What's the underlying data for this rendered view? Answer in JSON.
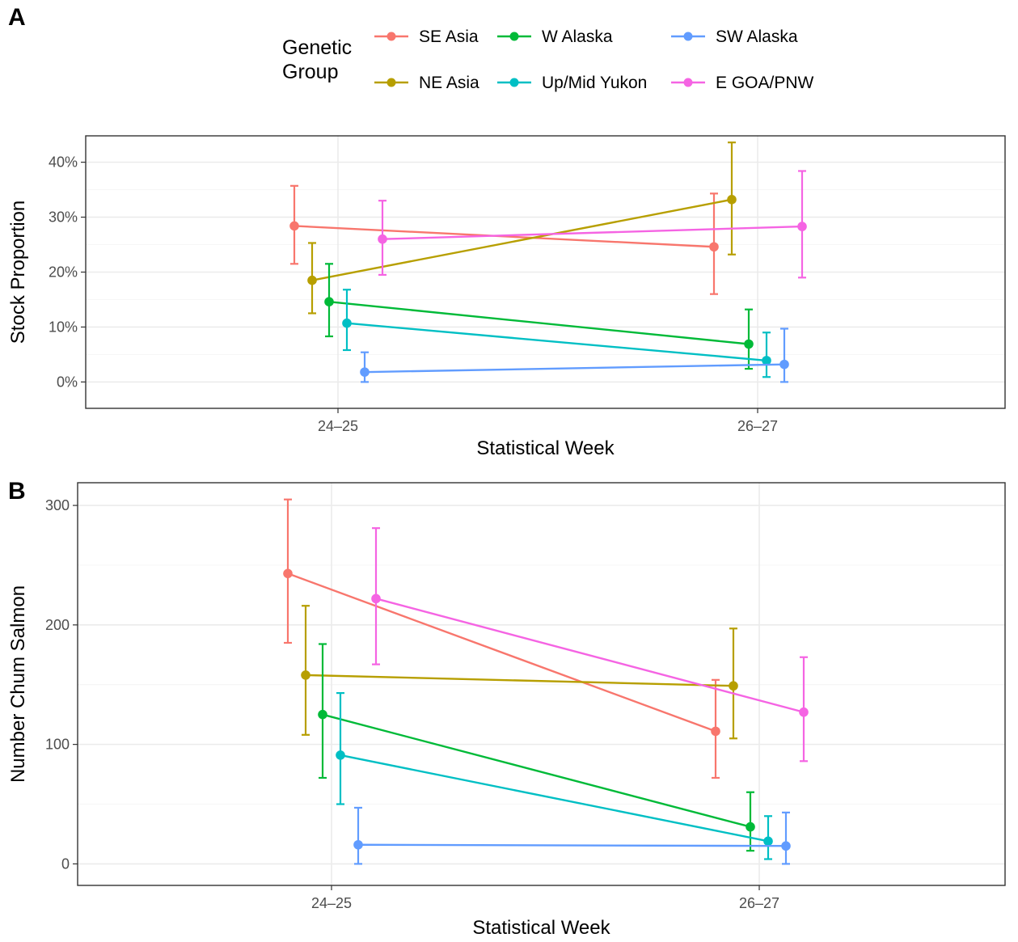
{
  "legend": {
    "title_line1": "Genetic",
    "title_line2": "Group",
    "items": [
      {
        "label": "SE Asia",
        "color": "#F8766D"
      },
      {
        "label": "NE Asia",
        "color": "#B79F00"
      },
      {
        "label": "W Alaska",
        "color": "#00BA38"
      },
      {
        "label": "Up/Mid Yukon",
        "color": "#00BFC4"
      },
      {
        "label": "SW Alaska",
        "color": "#619CFF"
      },
      {
        "label": "E GOA/PNW",
        "color": "#F564E3"
      }
    ]
  },
  "chart_data": [
    {
      "panel": "A",
      "type": "line",
      "xlabel": "Statistical Week",
      "ylabel": "Stock Proportion",
      "categories": [
        "24–25",
        "26–27"
      ],
      "y_ticks": [
        {
          "value": 0,
          "label": "0%"
        },
        {
          "value": 0.1,
          "label": "10%"
        },
        {
          "value": 0.2,
          "label": "20%"
        },
        {
          "value": 0.3,
          "label": "30%"
        },
        {
          "value": 0.4,
          "label": "40%"
        }
      ],
      "ylim": [
        -0.048,
        0.448
      ],
      "grid": true,
      "series": [
        {
          "name": "SE Asia",
          "values": [
            0.284,
            0.246
          ],
          "lower": [
            0.215,
            0.16
          ],
          "upper": [
            0.357,
            0.343
          ]
        },
        {
          "name": "NE Asia",
          "values": [
            0.185,
            0.332
          ],
          "lower": [
            0.125,
            0.232
          ],
          "upper": [
            0.253,
            0.436
          ]
        },
        {
          "name": "W Alaska",
          "values": [
            0.146,
            0.069
          ],
          "lower": [
            0.083,
            0.024
          ],
          "upper": [
            0.215,
            0.132
          ]
        },
        {
          "name": "Up/Mid Yukon",
          "values": [
            0.107,
            0.039
          ],
          "lower": [
            0.058,
            0.009
          ],
          "upper": [
            0.168,
            0.09
          ]
        },
        {
          "name": "SW Alaska",
          "values": [
            0.018,
            0.032
          ],
          "lower": [
            0.0,
            0.0
          ],
          "upper": [
            0.054,
            0.097
          ]
        },
        {
          "name": "E GOA/PNW",
          "values": [
            0.26,
            0.283
          ],
          "lower": [
            0.195,
            0.19
          ],
          "upper": [
            0.33,
            0.384
          ]
        }
      ]
    },
    {
      "panel": "B",
      "type": "line",
      "xlabel": "Statistical Week",
      "ylabel": "Number Chum Salmon",
      "categories": [
        "24–25",
        "26–27"
      ],
      "y_ticks": [
        {
          "value": 0,
          "label": "0"
        },
        {
          "value": 100,
          "label": "100"
        },
        {
          "value": 200,
          "label": "200"
        },
        {
          "value": 300,
          "label": "300"
        }
      ],
      "ylim": [
        -18,
        319
      ],
      "grid": true,
      "series": [
        {
          "name": "SE Asia",
          "values": [
            243,
            111
          ],
          "lower": [
            185,
            72
          ],
          "upper": [
            305,
            154
          ]
        },
        {
          "name": "NE Asia",
          "values": [
            158,
            149
          ],
          "lower": [
            108,
            105
          ],
          "upper": [
            216,
            197
          ]
        },
        {
          "name": "W Alaska",
          "values": [
            125,
            31
          ],
          "lower": [
            72,
            11
          ],
          "upper": [
            184,
            60
          ]
        },
        {
          "name": "Up/Mid Yukon",
          "values": [
            91,
            19
          ],
          "lower": [
            50,
            4
          ],
          "upper": [
            143,
            40
          ]
        },
        {
          "name": "SW Alaska",
          "values": [
            16,
            15
          ],
          "lower": [
            0,
            0
          ],
          "upper": [
            47,
            43
          ]
        },
        {
          "name": "E GOA/PNW",
          "values": [
            222,
            127
          ],
          "lower": [
            167,
            86
          ],
          "upper": [
            281,
            173
          ]
        }
      ]
    }
  ]
}
